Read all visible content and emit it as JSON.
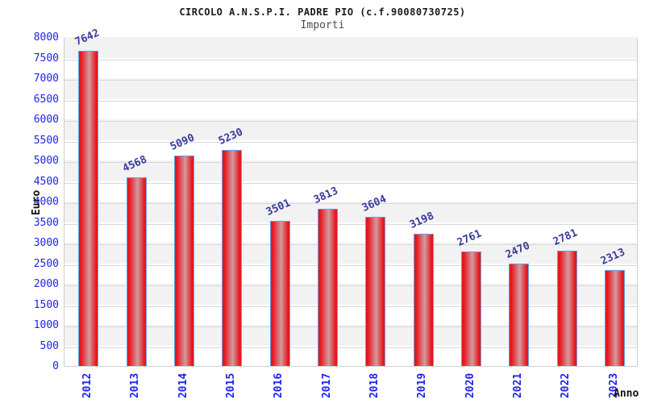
{
  "header": {
    "title": "CIRCOLO A.N.S.P.I. PADRE PIO (c.f.90080730725)",
    "subtitle": "Importi"
  },
  "chart_data": {
    "type": "bar",
    "title": "CIRCOLO A.N.S.P.I. PADRE PIO (c.f.90080730725)",
    "subtitle": "Importi",
    "xlabel": "Anno",
    "ylabel": "Euro",
    "categories": [
      "2012",
      "2013",
      "2014",
      "2015",
      "2016",
      "2017",
      "2018",
      "2019",
      "2020",
      "2021",
      "2022",
      "2023"
    ],
    "values": [
      7642,
      4568,
      5090,
      5230,
      3501,
      3813,
      3604,
      3198,
      2761,
      2470,
      2781,
      2313
    ],
    "ylim": [
      0,
      8000
    ],
    "ytick_step": 500,
    "grid": true,
    "legend": false,
    "colors": {
      "bar_edge": "#e8161e",
      "bar_mid": "#d29ba0",
      "bar_border": "#5ea4e6",
      "tick_label": "#2121ee",
      "value_label": "#3a3a9c",
      "band_gray": "#f2f2f2",
      "band_white": "#ffffff",
      "gridline": "#d8d8d8",
      "title_color": "#1a1a1a",
      "subtitle_color": "#4d4d4d"
    }
  }
}
